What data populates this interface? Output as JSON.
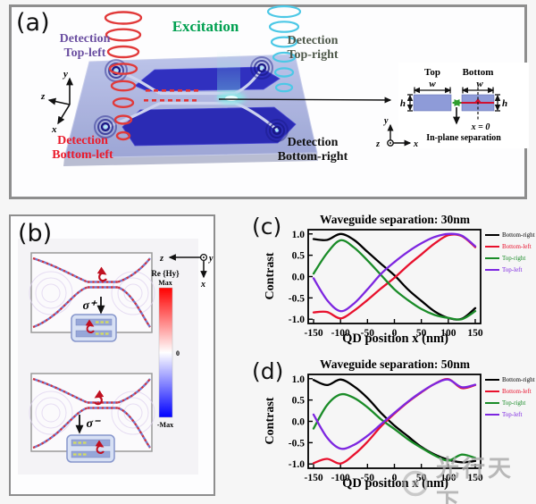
{
  "figure": {
    "panel_a": {
      "label": "(a)",
      "excitation_label": "Excitation",
      "detection_top_left": {
        "line1": "Detection",
        "line2": "Top-left"
      },
      "detection_top_right": {
        "line1": "Detection",
        "line2": "Top-right"
      },
      "detection_bottom_left": {
        "line1": "Detection",
        "line2": "Bottom-left"
      },
      "detection_bottom_right": {
        "line1": "Detection",
        "line2": "Bottom-right"
      },
      "axes": {
        "x": "x",
        "y": "y",
        "z": "z"
      },
      "inset": {
        "top_label": "Top",
        "bottom_label": "Bottom",
        "width_label": "w",
        "height_label": "h",
        "origin_label": "x = 0",
        "separation_label": "In-plane separation",
        "axes": {
          "x": "x",
          "y": "y",
          "z": "z"
        }
      }
    },
    "panel_b": {
      "label": "(b)",
      "sigma_plus": "σ⁺",
      "sigma_minus": "σ⁻",
      "colorbar": {
        "title": "Re {Hy}",
        "max": "Max",
        "zero": "0",
        "min": "-Max"
      },
      "axes": {
        "x": "x",
        "y": "y",
        "z": "z"
      }
    },
    "panel_c": {
      "label": "(c)"
    },
    "panel_d": {
      "label": "(d)"
    },
    "watermark": "光行天下"
  },
  "colors": {
    "bottom_right": "#000000",
    "bottom_left": "#e8112d",
    "top_right": "#1a8c28",
    "top_left": "#7d26e0"
  },
  "chart_data": [
    {
      "id": "c",
      "type": "line",
      "title": "Waveguide separation:  30nm",
      "xlabel": "QD position  x (nm)",
      "ylabel": "Contrast",
      "xlim": [
        -160,
        160
      ],
      "ylim": [
        -1.1,
        1.1
      ],
      "xticks": [
        -150,
        -100,
        -50,
        0,
        50,
        100,
        150
      ],
      "yticks": [
        1.0,
        0.5,
        0.0,
        -0.5,
        -1.0
      ],
      "legend_position": "right",
      "grid": false,
      "x": [
        -150,
        -125,
        -100,
        -75,
        -50,
        -25,
        0,
        25,
        50,
        75,
        100,
        125,
        150
      ],
      "series": [
        {
          "name": "Bottom-right",
          "color": "#000000",
          "values": [
            0.88,
            0.86,
            1.0,
            0.86,
            0.58,
            0.3,
            0.03,
            -0.3,
            -0.57,
            -0.82,
            -0.97,
            -0.99,
            -0.74
          ]
        },
        {
          "name": "Bottom-left",
          "color": "#e8112d",
          "values": [
            -0.84,
            -0.83,
            -0.98,
            -0.8,
            -0.55,
            -0.28,
            -0.03,
            0.26,
            0.52,
            0.78,
            0.97,
            0.95,
            0.69
          ]
        },
        {
          "name": "Top-right",
          "color": "#1a8c28",
          "values": [
            0.07,
            0.55,
            0.85,
            0.68,
            0.38,
            0.04,
            -0.3,
            -0.55,
            -0.76,
            -0.9,
            -0.97,
            -1.0,
            -0.81
          ]
        },
        {
          "name": "Top-left",
          "color": "#7d26e0",
          "values": [
            -0.04,
            -0.55,
            -0.81,
            -0.63,
            -0.3,
            0.06,
            0.34,
            0.58,
            0.78,
            0.93,
            1.0,
            0.96,
            0.71
          ]
        }
      ]
    },
    {
      "id": "d",
      "type": "line",
      "title": "Waveguide separation:  50nm",
      "xlabel": "QD position  x (nm)",
      "ylabel": "Contrast",
      "xlim": [
        -160,
        160
      ],
      "ylim": [
        -1.1,
        1.1
      ],
      "xticks": [
        -150,
        -100,
        -50,
        0,
        50,
        100,
        150
      ],
      "yticks": [
        1.0,
        0.5,
        0.0,
        -0.5,
        -1.0
      ],
      "legend_position": "right",
      "grid": false,
      "x": [
        -150,
        -125,
        -100,
        -75,
        -50,
        -25,
        0,
        25,
        50,
        75,
        100,
        125,
        150
      ],
      "series": [
        {
          "name": "Bottom-right",
          "color": "#000000",
          "values": [
            0.97,
            0.85,
            0.98,
            0.82,
            0.55,
            0.2,
            -0.1,
            -0.35,
            -0.6,
            -0.78,
            -0.9,
            -0.96,
            -0.93
          ]
        },
        {
          "name": "Bottom-left",
          "color": "#e8112d",
          "values": [
            -0.98,
            -0.88,
            -0.99,
            -0.78,
            -0.48,
            -0.12,
            0.18,
            0.45,
            0.68,
            0.88,
            0.99,
            0.78,
            0.85
          ]
        },
        {
          "name": "Top-right",
          "color": "#1a8c28",
          "values": [
            -0.17,
            0.38,
            0.63,
            0.55,
            0.33,
            0.05,
            -0.18,
            -0.42,
            -0.62,
            -0.8,
            -0.92,
            -0.78,
            -0.86
          ]
        },
        {
          "name": "Top-left",
          "color": "#7d26e0",
          "values": [
            0.16,
            -0.38,
            -0.64,
            -0.55,
            -0.34,
            -0.07,
            0.2,
            0.46,
            0.69,
            0.88,
            0.98,
            0.8,
            0.86
          ]
        }
      ]
    }
  ]
}
